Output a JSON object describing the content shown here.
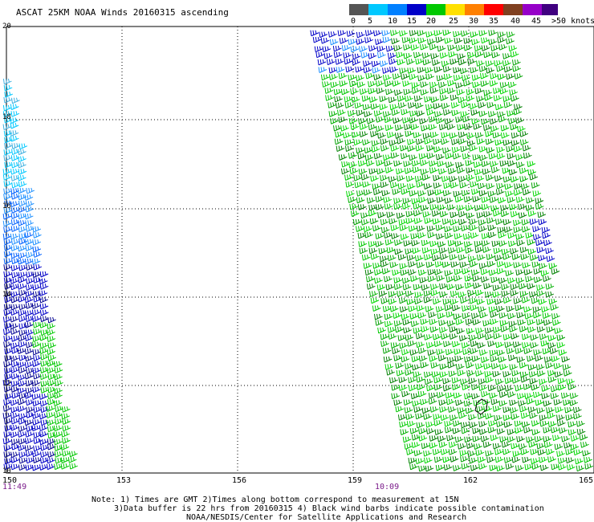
{
  "title": "ASCAT 25KM NOAA Winds 20160315 ascending",
  "legend": {
    "labels": [
      "0",
      "5",
      "10",
      "15",
      "20",
      "25",
      "30",
      "35",
      "40",
      "45",
      ">50 knots"
    ],
    "colors": [
      "#555555",
      "#00c8ff",
      "#0080ff",
      "#0000c8",
      "#00c800",
      "#ffe000",
      "#ff8000",
      "#ff0000",
      "#804020",
      "#9600c8",
      "#400080"
    ]
  },
  "latitudes": [
    "20",
    "18",
    "16",
    "14",
    "12",
    "10"
  ],
  "longitudes": [
    "150",
    "153",
    "156",
    "159",
    "162",
    "165"
  ],
  "pass_times": [
    "11:49",
    "10:09"
  ],
  "notes": [
    "Note: 1) Times are GMT 2)Times along bottom correspond to measurement at 15N",
    "3)Data buffer is 22 hrs from 20160315 4) Black wind barbs indicate possible contamination",
    "NOAA/NESDIS/Center for Satellite Applications and Research"
  ],
  "map": {
    "lon_range": [
      150,
      165
    ],
    "lat_range": [
      10,
      20
    ],
    "grid": "dotted",
    "swaths": [
      {
        "name": "western swath",
        "time": "11:49",
        "dominant_speed_knots": "10-20",
        "barb_colors": [
          "#00c8ff",
          "#0080ff",
          "#0000c8",
          "#00c800"
        ]
      },
      {
        "name": "eastern swath",
        "time": "10:09",
        "dominant_speed_knots": "15-20",
        "barb_colors": [
          "#00c800",
          "#008000",
          "#0000c8"
        ]
      }
    ]
  }
}
